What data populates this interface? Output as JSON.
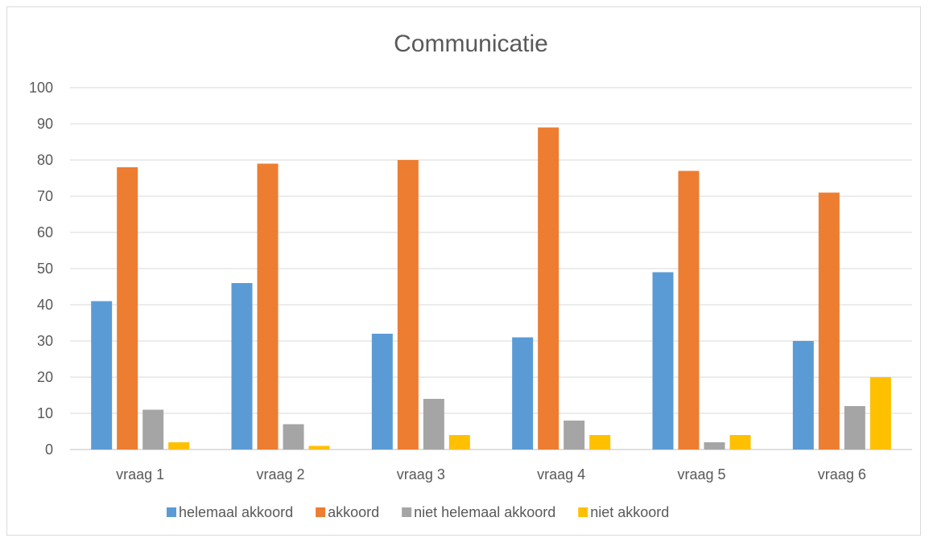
{
  "chart_data": {
    "type": "bar",
    "title": "Communicatie",
    "xlabel": "",
    "ylabel": "",
    "categories": [
      "vraag 1",
      "vraag 2",
      "vraag 3",
      "vraag 4",
      "vraag 5",
      "vraag 6"
    ],
    "series": [
      {
        "name": "helemaal akkoord",
        "color": "#5b9bd5",
        "values": [
          41,
          46,
          32,
          31,
          49,
          30
        ]
      },
      {
        "name": "akkoord",
        "color": "#ed7d31",
        "values": [
          78,
          79,
          80,
          89,
          77,
          71
        ]
      },
      {
        "name": "niet helemaal akkoord",
        "color": "#a5a5a5",
        "values": [
          11,
          7,
          14,
          8,
          2,
          12
        ]
      },
      {
        "name": "niet akkoord",
        "color": "#ffc000",
        "values": [
          2,
          1,
          4,
          4,
          4,
          20
        ]
      }
    ],
    "ylim": [
      0,
      100
    ],
    "yticks": [
      "0",
      "10",
      "20",
      "30",
      "40",
      "50",
      "60",
      "70",
      "80",
      "90",
      "100"
    ],
    "grid": true,
    "legend_position": "bottom"
  }
}
